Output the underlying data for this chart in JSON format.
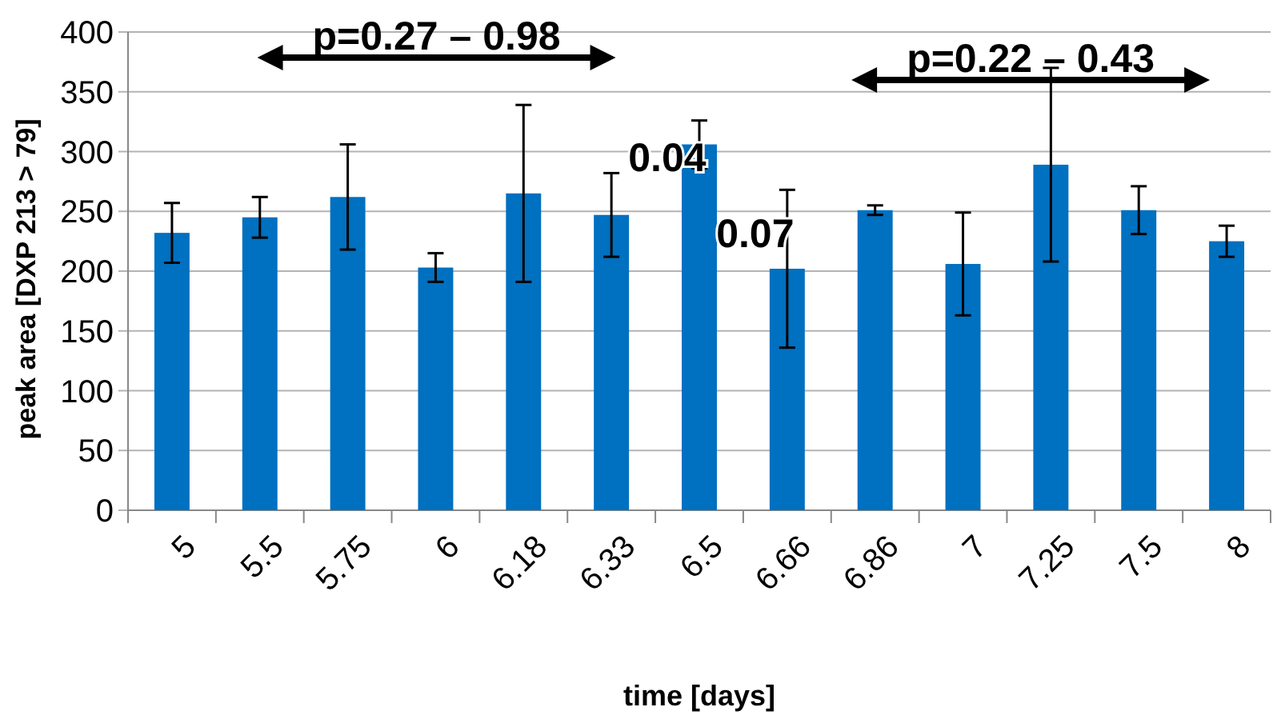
{
  "chart_data": {
    "type": "bar",
    "xlabel": "time [days]",
    "ylabel": "peak area [DXP 213 > 79]",
    "categories": [
      "5",
      "5.5",
      "5.75",
      "6",
      "6.18",
      "6.33",
      "6.5",
      "6.66",
      "6.86",
      "7",
      "7.25",
      "7.5",
      "8"
    ],
    "values": [
      232,
      245,
      262,
      203,
      265,
      247,
      306,
      202,
      251,
      206,
      289,
      251,
      225
    ],
    "errors": [
      25,
      17,
      44,
      12,
      74,
      35,
      20,
      66,
      4,
      43,
      81,
      20,
      13
    ],
    "color": "#0070c0",
    "ylim": [
      0,
      400
    ],
    "yticks": [
      0,
      50,
      100,
      150,
      200,
      250,
      300,
      350,
      400
    ],
    "grid": "y",
    "annotations": [
      "p=0.27 – 0.98",
      "p=0.22 – 0.43",
      {
        "text": "0.04",
        "x": "6.5",
        "y": 295
      },
      {
        "text": "0.07",
        "x": "6.66",
        "y": 232
      }
    ]
  }
}
